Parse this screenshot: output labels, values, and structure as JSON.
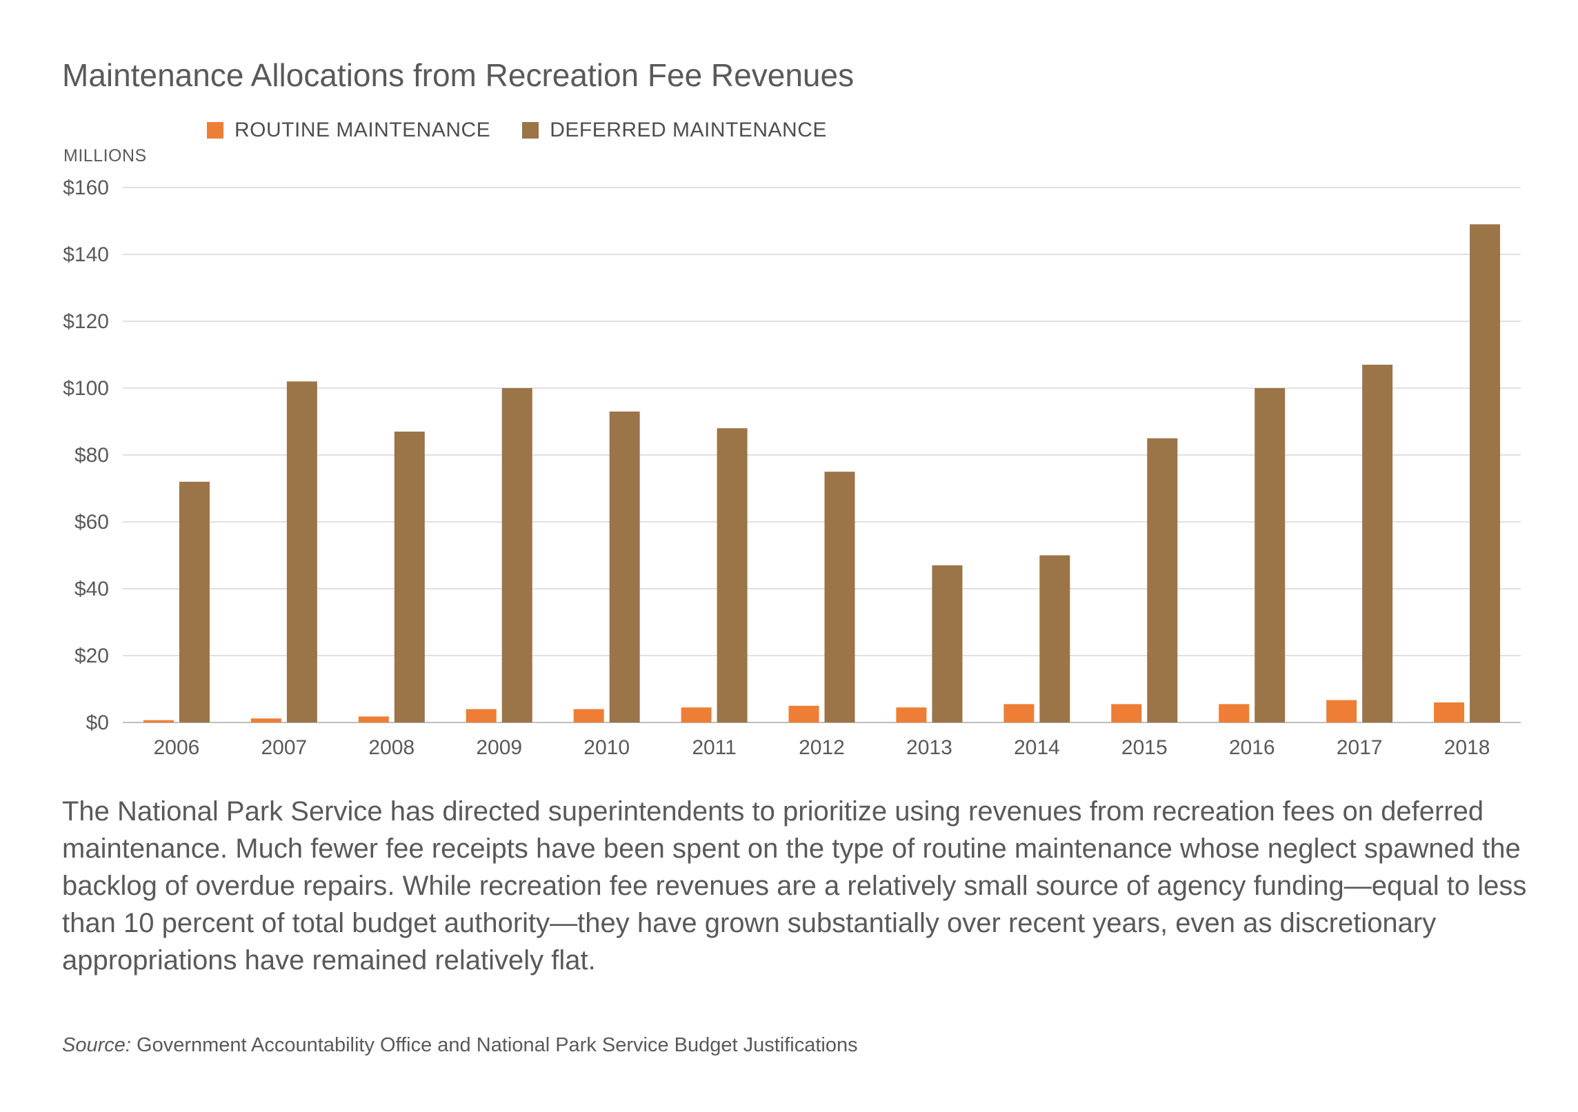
{
  "title": "Maintenance Allocations from Recreation Fee Revenues",
  "unit_label": "MILLIONS",
  "legend": [
    {
      "label": "ROUTINE MAINTENANCE",
      "color": "#ee7e35"
    },
    {
      "label": "DEFERRED MAINTENANCE",
      "color": "#9b7448"
    }
  ],
  "chart_data": {
    "type": "bar",
    "title": "Maintenance Allocations from Recreation Fee Revenues",
    "ylabel": "MILLIONS",
    "ylim": [
      0,
      160
    ],
    "y_ticks": [
      0,
      20,
      40,
      60,
      80,
      100,
      120,
      140,
      160
    ],
    "y_tick_labels": [
      "$0",
      "$20",
      "$40",
      "$60",
      "$80",
      "$100",
      "$120",
      "$140",
      "$160"
    ],
    "grid": true,
    "legend_position": "top",
    "categories": [
      "2006",
      "2007",
      "2008",
      "2009",
      "2010",
      "2011",
      "2012",
      "2013",
      "2014",
      "2015",
      "2016",
      "2017",
      "2018"
    ],
    "series": [
      {
        "name": "ROUTINE MAINTENANCE",
        "color": "#ee7e35",
        "values": [
          0.7,
          1.2,
          1.8,
          4.0,
          4.0,
          4.5,
          5.0,
          4.5,
          5.5,
          5.5,
          5.5,
          6.7,
          6.0
        ]
      },
      {
        "name": "DEFERRED MAINTENANCE",
        "color": "#9b7448",
        "values": [
          72,
          102,
          87,
          100,
          93,
          88,
          75,
          47,
          50,
          85,
          100,
          107,
          149
        ]
      }
    ]
  },
  "body_text": "The National Park Service has directed superintendents to prioritize using revenues from recreation fees on deferred maintenance. Much fewer fee receipts have been spent on the type of routine maintenance whose neglect spawned the backlog of overdue repairs. While recreation fee revenues are a relatively small source of agency funding—equal to less than 10 percent of total budget authority—they have grown substantially over recent years, even as discretionary appropriations have remained relatively flat.",
  "source": {
    "label": "Source:",
    "text": "Government Accountability Office and National Park Service Budget Justifications"
  }
}
